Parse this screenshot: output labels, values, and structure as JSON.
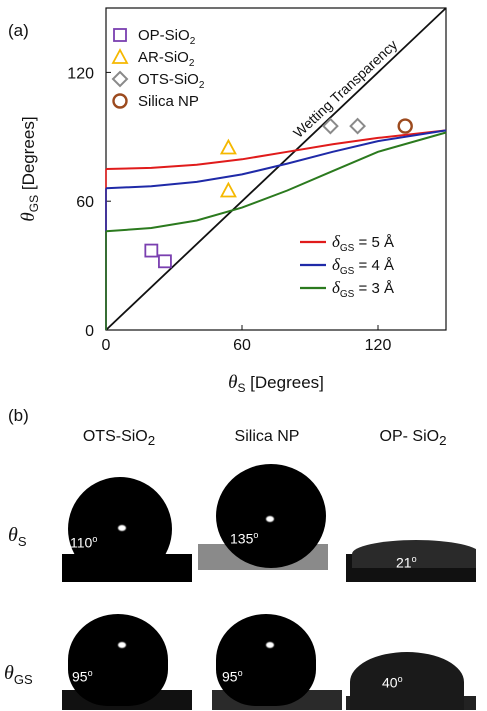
{
  "panel_a_label": "(a)",
  "panel_b_label": "(b)",
  "chart_data": {
    "type": "scatter",
    "xlabel": "θS [Degrees]",
    "ylabel": "θGS [Degrees]",
    "xlim": [
      0,
      150
    ],
    "ylim": [
      0,
      150
    ],
    "xticks": [
      0,
      60,
      120
    ],
    "yticks": [
      0,
      60,
      120
    ],
    "diagonal_label": "Wetting Transparency",
    "scatter_series": [
      {
        "name": "OP-SiO2",
        "marker": "square",
        "color": "#7a3fb0",
        "points": [
          [
            20,
            37
          ],
          [
            26,
            32
          ]
        ]
      },
      {
        "name": "AR-SiO2",
        "marker": "triangle",
        "color": "#f5b800",
        "points": [
          [
            54,
            85
          ],
          [
            54,
            65
          ]
        ]
      },
      {
        "name": "OTS-SiO2",
        "marker": "diamond",
        "color": "#8a8a8a",
        "points": [
          [
            99,
            95
          ],
          [
            111,
            95
          ]
        ]
      },
      {
        "name": "Silica NP",
        "marker": "circle",
        "color": "#9c4a1e",
        "points": [
          [
            132,
            95
          ]
        ]
      }
    ],
    "line_series": [
      {
        "name": "δGS = 5 Å",
        "color": "#e01b1b",
        "points": [
          [
            0,
            75
          ],
          [
            20,
            75.5
          ],
          [
            40,
            77
          ],
          [
            60,
            79.5
          ],
          [
            80,
            83
          ],
          [
            100,
            86.5
          ],
          [
            120,
            89.5
          ],
          [
            150,
            93
          ]
        ]
      },
      {
        "name": "δGS = 4 Å",
        "color": "#1f2aa8",
        "points": [
          [
            0,
            66
          ],
          [
            20,
            67
          ],
          [
            40,
            69
          ],
          [
            60,
            72.5
          ],
          [
            80,
            77.5
          ],
          [
            100,
            83
          ],
          [
            120,
            88
          ],
          [
            150,
            93
          ]
        ]
      },
      {
        "name": "δGS = 3 Å",
        "color": "#2b7a1e",
        "points": [
          [
            0,
            46
          ],
          [
            20,
            47.5
          ],
          [
            40,
            51
          ],
          [
            60,
            57
          ],
          [
            80,
            65
          ],
          [
            100,
            74
          ],
          [
            120,
            83
          ],
          [
            150,
            92
          ]
        ]
      }
    ],
    "legend_placement": "top-left",
    "line_legend_placement": "bottom-right"
  },
  "photos": {
    "columns": [
      "OTS-SiO2",
      "Silica NP",
      "OP- SiO2"
    ],
    "rows": [
      "θS",
      "θGS"
    ],
    "angles": [
      [
        "110",
        "135",
        "21"
      ],
      [
        "95",
        "95",
        "40"
      ]
    ]
  }
}
